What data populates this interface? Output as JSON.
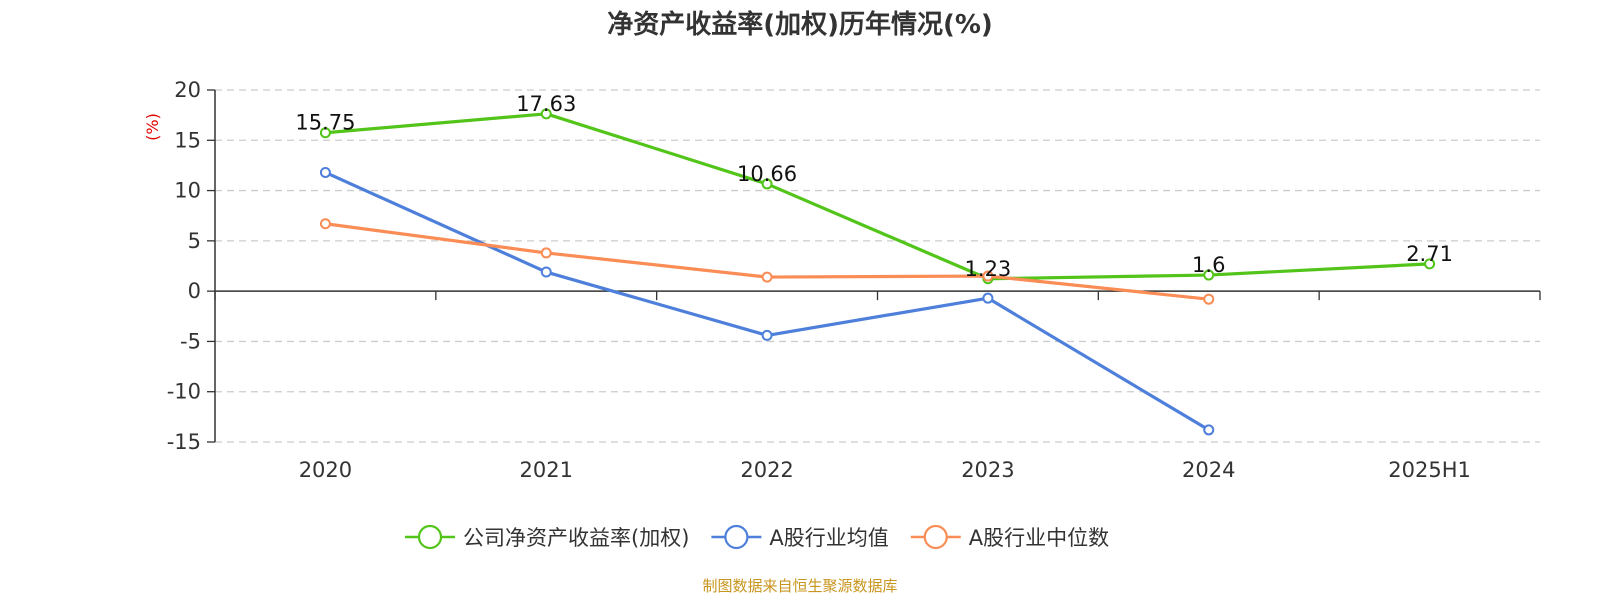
{
  "chart_data": {
    "type": "line",
    "title": "净资产收益率(加权)历年情况(%)",
    "ylabel": "(%)",
    "xlabel": "",
    "categories": [
      "2020",
      "2021",
      "2022",
      "2023",
      "2024",
      "2025H1"
    ],
    "ylim": [
      -15,
      20
    ],
    "yticks": [
      20,
      15,
      10,
      5,
      0,
      -5,
      -10,
      -15
    ],
    "grid": true,
    "legend_position": "bottom-center",
    "series": [
      {
        "name": "公司净资产收益率(加权)",
        "color": "#52c41a",
        "values": [
          15.75,
          17.63,
          10.66,
          1.23,
          1.6,
          2.71
        ],
        "show_labels": true
      },
      {
        "name": "A股行业均值",
        "color": "#4e7fdb",
        "values": [
          11.8,
          1.9,
          -4.4,
          -0.7,
          -13.8,
          null
        ],
        "show_labels": false
      },
      {
        "name": "A股行业中位数",
        "color": "#fa8c55",
        "values": [
          6.7,
          3.8,
          1.4,
          1.5,
          -0.8,
          null
        ],
        "show_labels": false
      }
    ]
  },
  "footer": {
    "source": "制图数据来自恒生聚源数据库",
    "source_color": "#c8951e"
  },
  "colors": {
    "axis": "#333333",
    "grid": "#cccccc",
    "ylabel": "#e00000"
  }
}
